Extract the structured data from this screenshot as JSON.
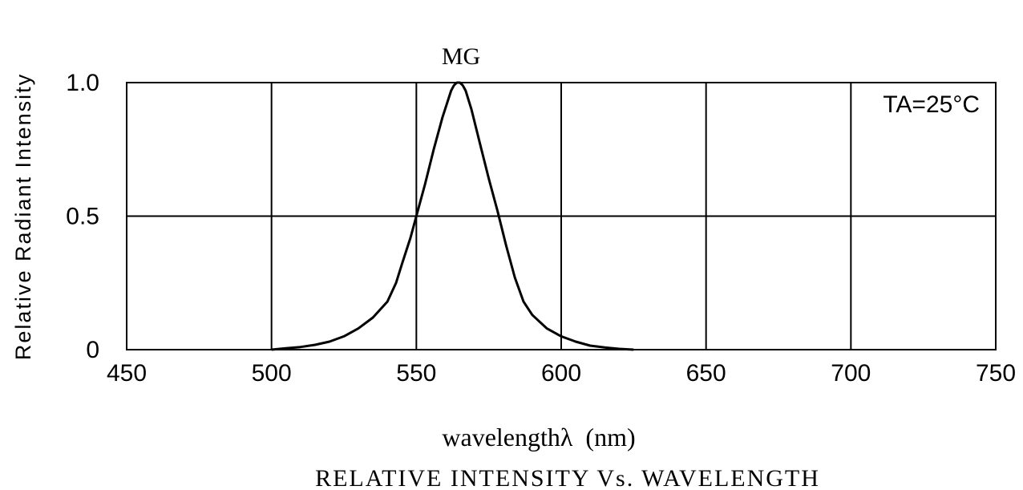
{
  "chart_data": {
    "type": "line",
    "title": "RELATIVE INTENSITY Vs. WAVELENGTH",
    "xlabel": "wavelengthλ  (nm)",
    "ylabel": "Relative Radiant Intensity",
    "xlim": [
      450,
      750
    ],
    "ylim": [
      0,
      1.0
    ],
    "x_ticks": [
      "450",
      "500",
      "550",
      "600",
      "650",
      "700",
      "750"
    ],
    "x_tick_values": [
      450,
      500,
      550,
      600,
      650,
      700,
      750
    ],
    "y_ticks": [
      "0",
      "0.5",
      "1.0"
    ],
    "y_tick_values": [
      0,
      0.5,
      1.0
    ],
    "grid": true,
    "annotations": {
      "peak_label": "MG",
      "condition": "TA=25°C"
    },
    "series": [
      {
        "name": "MG",
        "x": [
          500,
          505,
          510,
          515,
          520,
          525,
          530,
          535,
          540,
          543,
          545,
          548,
          550,
          553,
          556,
          559,
          562,
          563,
          564,
          565,
          566,
          567,
          569,
          572,
          575,
          578,
          581,
          584,
          587,
          590,
          595,
          600,
          605,
          610,
          615,
          620,
          625
        ],
        "y": [
          0.0,
          0.005,
          0.01,
          0.018,
          0.03,
          0.05,
          0.08,
          0.12,
          0.18,
          0.25,
          0.32,
          0.42,
          0.5,
          0.62,
          0.75,
          0.87,
          0.97,
          0.99,
          1.0,
          1.0,
          0.99,
          0.97,
          0.9,
          0.77,
          0.64,
          0.52,
          0.39,
          0.27,
          0.18,
          0.13,
          0.08,
          0.05,
          0.03,
          0.015,
          0.008,
          0.003,
          0.0
        ]
      }
    ]
  }
}
